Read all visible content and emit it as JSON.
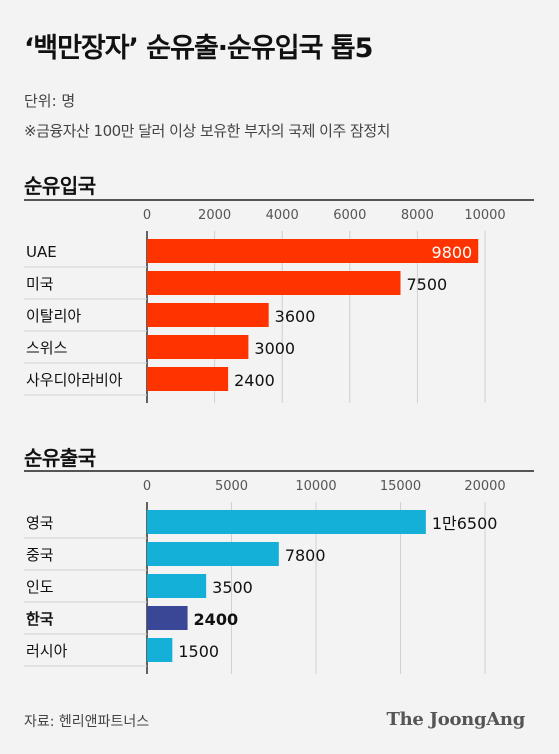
{
  "title": "‘백만장자’ 순유출·순유입국 톱5",
  "unit_label": "단위: 명",
  "note": "※금융자산 100만 달러 이상 보유한 부자의 국제 이주 잠정치",
  "source": "자료: 헨리앤파트너스",
  "logo_text": "The JoongAng",
  "chart_data": [
    {
      "type": "bar",
      "orientation": "horizontal",
      "title": "순유입국",
      "categories": [
        "UAE",
        "미국",
        "이탈리아",
        "스위스",
        "사우디아라비아"
      ],
      "values": [
        9800,
        7500,
        3600,
        3000,
        2400
      ],
      "value_labels": [
        "9800",
        "7500",
        "3600",
        "3000",
        "2400"
      ],
      "xlim": [
        0,
        10000
      ],
      "ticks": [
        0,
        2000,
        4000,
        6000,
        8000,
        10000
      ],
      "grid": true,
      "bar_color": "#ff3300",
      "highlight_index": -1
    },
    {
      "type": "bar",
      "orientation": "horizontal",
      "title": "순유출국",
      "categories": [
        "영국",
        "중국",
        "인도",
        "한국",
        "러시아"
      ],
      "values": [
        16500,
        7800,
        3500,
        2400,
        1500
      ],
      "value_labels": [
        "1만6500",
        "7800",
        "3500",
        "2400",
        "1500"
      ],
      "xlim": [
        0,
        20000
      ],
      "ticks": [
        0,
        5000,
        10000,
        15000,
        20000
      ],
      "grid": true,
      "bar_color": "#14b0d8",
      "highlight_index": 3,
      "highlight_color": "#3a4796"
    }
  ]
}
